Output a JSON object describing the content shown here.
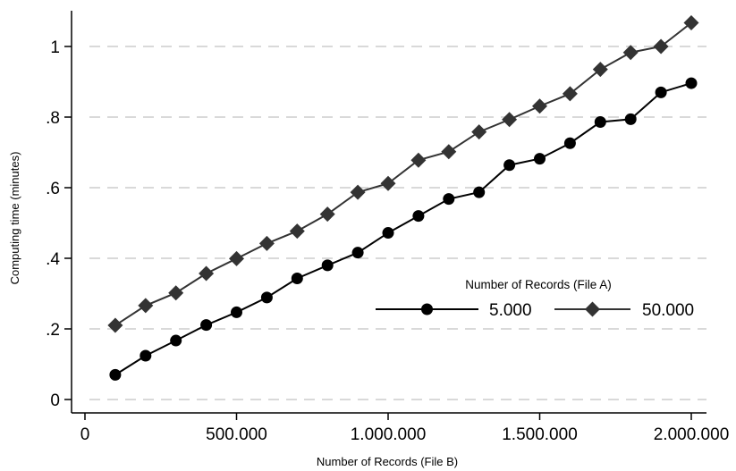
{
  "chart_data": {
    "type": "line",
    "xlabel": "Number of Records (File B)",
    "ylabel": "Computing time (minutes)",
    "xlim": [
      0,
      2000000
    ],
    "ylim": [
      0,
      1.05
    ],
    "grid": "horizontal dashed",
    "x_ticks": [
      0,
      500000,
      1000000,
      1500000,
      2000000
    ],
    "x_tick_labels": [
      "0",
      "500.000",
      "1.000.000",
      "1.500.000",
      "2.000.000"
    ],
    "y_ticks": [
      0,
      0.2,
      0.4,
      0.6,
      0.8,
      1
    ],
    "y_tick_labels": [
      "0",
      ".2",
      ".4",
      ".6",
      ".8",
      "1"
    ],
    "legend": {
      "title": "Number of Records (File A)",
      "placement": "bottom-right, inside plot"
    },
    "x": [
      100000,
      200000,
      300000,
      400000,
      500000,
      600000,
      700000,
      800000,
      900000,
      1000000,
      1100000,
      1200000,
      1300000,
      1400000,
      1500000,
      1600000,
      1700000,
      1800000,
      1900000,
      2000000
    ],
    "series": [
      {
        "name": "5.000",
        "marker": "circle",
        "color": "#000000",
        "values": [
          0.07,
          0.124,
          0.167,
          0.211,
          0.247,
          0.289,
          0.343,
          0.38,
          0.416,
          0.472,
          0.52,
          0.568,
          0.587,
          0.664,
          0.682,
          0.726,
          0.786,
          0.794,
          0.87,
          0.896
        ]
      },
      {
        "name": "50.000",
        "marker": "diamond",
        "color": "#333333",
        "values": [
          0.21,
          0.266,
          0.302,
          0.357,
          0.399,
          0.442,
          0.477,
          0.525,
          0.587,
          0.612,
          0.678,
          0.702,
          0.758,
          0.793,
          0.831,
          0.866,
          0.935,
          0.983,
          1.0,
          1.067
        ]
      }
    ]
  }
}
